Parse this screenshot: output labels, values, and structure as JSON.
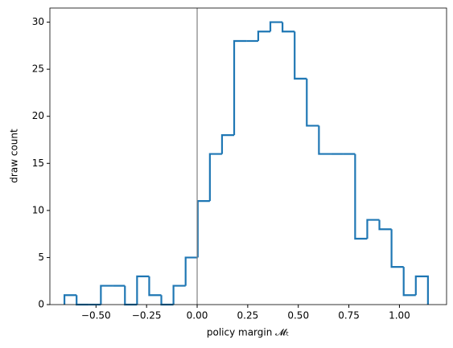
{
  "chart_data": {
    "type": "histogram",
    "xlabel": "policy margin 𝓜ₜ",
    "ylabel": "draw count",
    "bins": [
      -0.656,
      -0.596,
      -0.536,
      -0.476,
      -0.416,
      -0.357,
      -0.297,
      -0.237,
      -0.177,
      -0.117,
      -0.057,
      0.003,
      0.063,
      0.123,
      0.183,
      0.243,
      0.302,
      0.362,
      0.422,
      0.482,
      0.542,
      0.602,
      0.662,
      0.722,
      0.781,
      0.841,
      0.901,
      0.961,
      1.021,
      1.081,
      1.141
    ],
    "counts": [
      1,
      0,
      0,
      2,
      2,
      0,
      3,
      1,
      0,
      2,
      5,
      11,
      16,
      18,
      28,
      28,
      29,
      30,
      29,
      24,
      19,
      16,
      16,
      16,
      7,
      9,
      8,
      4,
      1,
      3
    ],
    "color": "#1f77b4",
    "reference_line": 0,
    "reference_color": "#808080",
    "xlim": [
      -0.728,
      1.233
    ],
    "ylim": [
      0,
      31.5
    ],
    "xticks": [
      {
        "value": -0.5,
        "label": "−0.50"
      },
      {
        "value": -0.25,
        "label": "−0.25"
      },
      {
        "value": 0,
        "label": "0.00"
      },
      {
        "value": 0.25,
        "label": "0.25"
      },
      {
        "value": 0.5,
        "label": "0.50"
      },
      {
        "value": 0.75,
        "label": "0.75"
      },
      {
        "value": 1,
        "label": "1.00"
      }
    ],
    "yticks": [
      0,
      5,
      10,
      15,
      20,
      25,
      30
    ]
  }
}
